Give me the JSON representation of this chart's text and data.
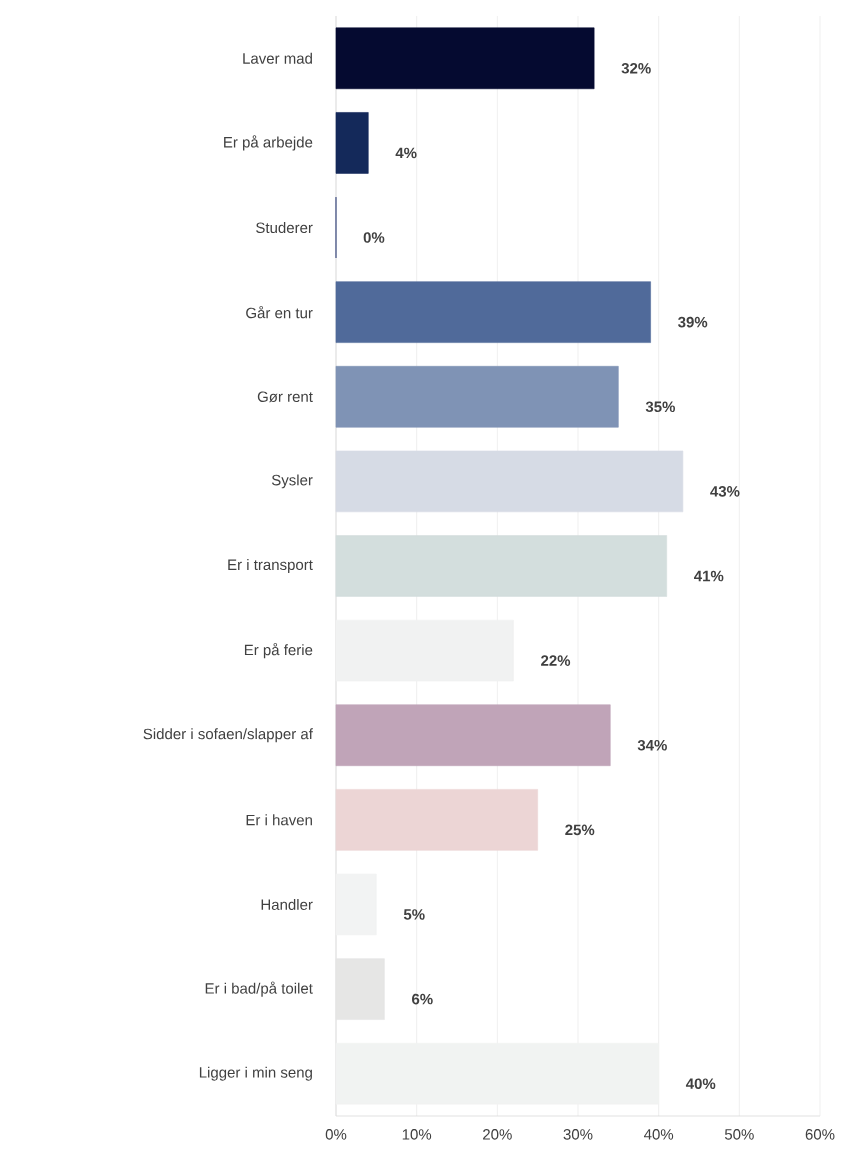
{
  "chart_data": {
    "type": "bar",
    "orientation": "horizontal",
    "categories": [
      "Laver mad",
      "Er på arbejde",
      "Studerer",
      "Går en tur",
      "Gør rent",
      "Sysler",
      "Er i transport",
      "Er på ferie",
      "Sidder i sofaen/slapper af",
      "Er i haven",
      "Handler",
      "Er i bad/på toilet",
      "Ligger i min seng"
    ],
    "values": [
      32,
      4,
      0,
      39,
      35,
      43,
      41,
      22,
      34,
      25,
      5,
      6,
      40
    ],
    "value_labels": [
      "32%",
      "4%",
      "0%",
      "39%",
      "35%",
      "43%",
      "41%",
      "22%",
      "34%",
      "25%",
      "5%",
      "6%",
      "40%"
    ],
    "colors": [
      "#050a30",
      "#14295a",
      "#1b2d6b",
      "#506a9a",
      "#7f93b5",
      "#d6dbe5",
      "#d3dedd",
      "#f1f2f2",
      "#c0a4b8",
      "#ecd5d5",
      "#f2f3f3",
      "#e6e6e5",
      "#f1f3f2"
    ],
    "xlim": [
      0,
      60
    ],
    "xticks": [
      {
        "value": 0,
        "label": "0%"
      },
      {
        "value": 10,
        "label": "10%"
      },
      {
        "value": 20,
        "label": "20%"
      },
      {
        "value": 30,
        "label": "30%"
      },
      {
        "value": 40,
        "label": "40%"
      },
      {
        "value": 50,
        "label": "50%"
      },
      {
        "value": 60,
        "label": "60%"
      }
    ],
    "grid": "x"
  }
}
